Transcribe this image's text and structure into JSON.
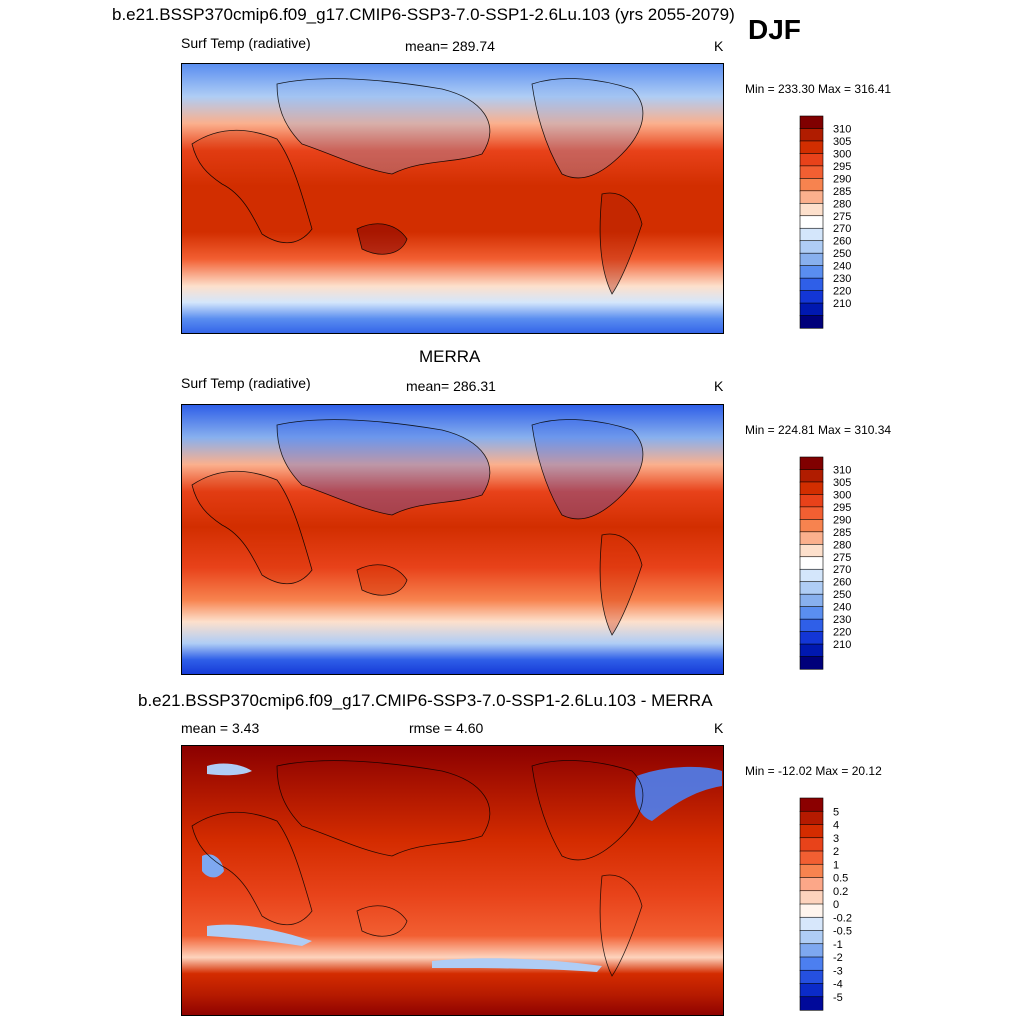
{
  "header": {
    "title": "b.e21.BSSP370cmip6.f09_g17.CMIP6-SSP3-7.0-SSP1-2.6Lu.103 (yrs 2055-2079)",
    "season": "DJF"
  },
  "chart_data": [
    {
      "type": "heatmap",
      "panel": "model",
      "variable": "Surf Temp (radiative)",
      "mean_text": "mean= 289.74",
      "units": "K",
      "minmax_text": "Min = 233.30 Max = 316.41",
      "colorbar_ticks": [
        "310",
        "305",
        "300",
        "295",
        "290",
        "285",
        "280",
        "275",
        "270",
        "260",
        "250",
        "240",
        "230",
        "220",
        "210"
      ],
      "colorbar_colors": [
        "#800000",
        "#b01c00",
        "#d22e00",
        "#e8421a",
        "#f25f32",
        "#f7834f",
        "#fbb08d",
        "#fde0cc",
        "#ffffff",
        "#d4e6fb",
        "#afcdf5",
        "#88b0ee",
        "#5a8ef0",
        "#2f5fe8",
        "#1336d6",
        "#0018b0",
        "#00007a"
      ]
    },
    {
      "type": "heatmap",
      "panel": "obs",
      "title": "MERRA",
      "variable": "Surf Temp (radiative)",
      "mean_text": "mean= 286.31",
      "units": "K",
      "minmax_text": "Min = 224.81 Max = 310.34",
      "colorbar_ticks": [
        "310",
        "305",
        "300",
        "295",
        "290",
        "285",
        "280",
        "275",
        "270",
        "260",
        "250",
        "240",
        "230",
        "220",
        "210"
      ],
      "colorbar_colors": [
        "#800000",
        "#b01c00",
        "#d22e00",
        "#e8421a",
        "#f25f32",
        "#f7834f",
        "#fbb08d",
        "#fde0cc",
        "#ffffff",
        "#d4e6fb",
        "#afcdf5",
        "#88b0ee",
        "#5a8ef0",
        "#2f5fe8",
        "#1336d6",
        "#0018b0",
        "#00007a"
      ]
    },
    {
      "type": "heatmap",
      "panel": "difference",
      "title": "b.e21.BSSP370cmip6.f09_g17.CMIP6-SSP3-7.0-SSP1-2.6Lu.103 - MERRA",
      "mean_text": "mean =   3.43",
      "rmse_text": "rmse =   4.60",
      "units": "K",
      "minmax_text": "Min = -12.02 Max =  20.12",
      "colorbar_ticks": [
        "5",
        "4",
        "3",
        "2",
        "1",
        "0.5",
        "0.2",
        "0",
        "-0.2",
        "-0.5",
        "-1",
        "-2",
        "-3",
        "-4",
        "-5"
      ],
      "colorbar_colors": [
        "#8b0000",
        "#b51a00",
        "#d42c00",
        "#e8431a",
        "#f25f32",
        "#f7834f",
        "#fca788",
        "#fdd3bd",
        "#fff5ee",
        "#d7e7fb",
        "#afcdf5",
        "#7ea8f0",
        "#4c7ff0",
        "#2550e0",
        "#0b2bc8",
        "#00099a"
      ]
    }
  ]
}
